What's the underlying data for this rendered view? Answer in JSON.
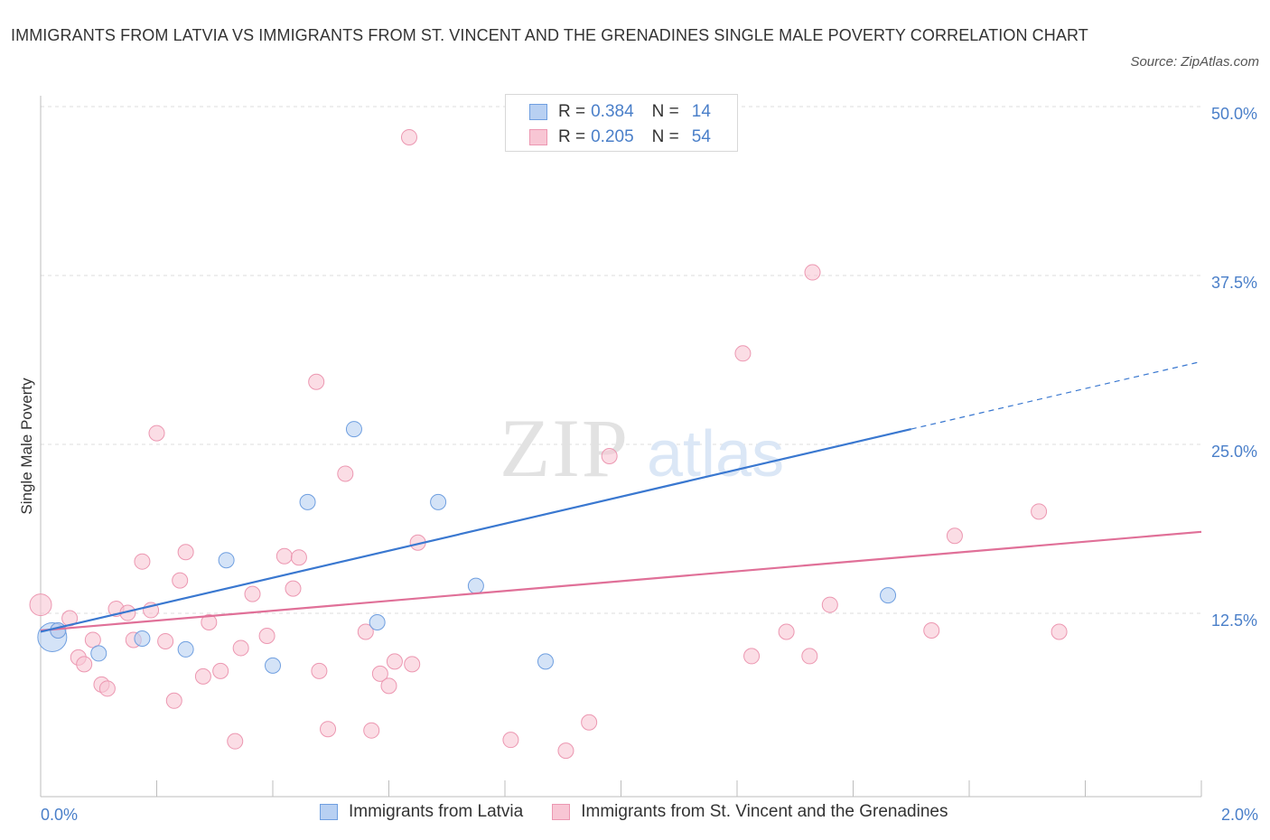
{
  "title": "IMMIGRANTS FROM LATVIA VS IMMIGRANTS FROM ST. VINCENT AND THE GRENADINES SINGLE MALE POVERTY CORRELATION CHART",
  "source": "Source: ZipAtlas.com",
  "watermark": {
    "zip": "ZIP",
    "atlas": "atlas"
  },
  "colors": {
    "latvia_fill": "#b8d0f2",
    "latvia_stroke": "#6f9fe0",
    "latvia_line": "#3a78d0",
    "svg_fill": "#f8c6d4",
    "svg_stroke": "#ec97b1",
    "svg_line": "#e07098",
    "tick_label": "#4a7fc9",
    "grid": "#dcdcdc"
  },
  "legend": {
    "rows": [
      {
        "r_label": "R =",
        "r_value": "0.384",
        "n_label": "N =",
        "n_value": "14"
      },
      {
        "r_label": "R =",
        "r_value": "0.205",
        "n_label": "N =",
        "n_value": "54"
      }
    ]
  },
  "chart_data": {
    "type": "scatter",
    "xlabel": "",
    "ylabel": "Single Male Poverty",
    "xlim": [
      0,
      2.0
    ],
    "ylim": [
      0,
      50
    ],
    "x_tick_labels": [
      "0.0%",
      "2.0%"
    ],
    "y_ticks": [
      12.5,
      25.0,
      37.5,
      50.0
    ],
    "y_tick_labels": [
      "12.5%",
      "25.0%",
      "37.5%",
      "50.0%"
    ],
    "grid": true,
    "legend_position": "bottom",
    "series": [
      {
        "name": "Immigrants from Latvia",
        "points": [
          [
            0.02,
            11.8
          ],
          [
            0.1,
            10.6
          ],
          [
            0.175,
            11.7
          ],
          [
            0.25,
            10.9
          ],
          [
            0.32,
            17.5
          ],
          [
            0.4,
            9.7
          ],
          [
            0.46,
            21.8
          ],
          [
            0.54,
            27.2
          ],
          [
            0.58,
            12.9
          ],
          [
            0.685,
            21.8
          ],
          [
            0.75,
            15.6
          ],
          [
            0.87,
            10.0
          ],
          [
            1.46,
            14.9
          ],
          [
            0.03,
            12.3
          ]
        ],
        "trend": {
          "x0": 0.0,
          "y0": 12.2,
          "x1": 1.5,
          "y1": 27.2,
          "dash_x1": 2.0,
          "dash_y1": 32.2
        }
      },
      {
        "name": "Immigrants from St. Vincent and the Grenadines",
        "points": [
          [
            0.0,
            14.2
          ],
          [
            0.03,
            12.3
          ],
          [
            0.05,
            13.2
          ],
          [
            0.065,
            10.3
          ],
          [
            0.075,
            9.8
          ],
          [
            0.09,
            11.6
          ],
          [
            0.105,
            8.3
          ],
          [
            0.115,
            8.0
          ],
          [
            0.13,
            13.9
          ],
          [
            0.15,
            13.6
          ],
          [
            0.16,
            11.6
          ],
          [
            0.175,
            17.4
          ],
          [
            0.19,
            13.8
          ],
          [
            0.2,
            26.9
          ],
          [
            0.215,
            11.5
          ],
          [
            0.23,
            7.1
          ],
          [
            0.24,
            16.0
          ],
          [
            0.25,
            18.1
          ],
          [
            0.28,
            8.9
          ],
          [
            0.29,
            12.9
          ],
          [
            0.31,
            9.3
          ],
          [
            0.335,
            4.1
          ],
          [
            0.345,
            11.0
          ],
          [
            0.365,
            15.0
          ],
          [
            0.39,
            11.9
          ],
          [
            0.42,
            17.8
          ],
          [
            0.435,
            15.4
          ],
          [
            0.445,
            17.7
          ],
          [
            0.475,
            30.7
          ],
          [
            0.48,
            9.3
          ],
          [
            0.495,
            5.0
          ],
          [
            0.525,
            23.9
          ],
          [
            0.56,
            12.2
          ],
          [
            0.57,
            4.9
          ],
          [
            0.585,
            9.1
          ],
          [
            0.6,
            8.2
          ],
          [
            0.61,
            10.0
          ],
          [
            0.635,
            48.8
          ],
          [
            0.65,
            18.8
          ],
          [
            0.64,
            9.8
          ],
          [
            0.81,
            4.2
          ],
          [
            0.905,
            3.4
          ],
          [
            0.945,
            5.5
          ],
          [
            0.98,
            25.2
          ],
          [
            1.21,
            32.8
          ],
          [
            1.225,
            10.4
          ],
          [
            1.285,
            12.2
          ],
          [
            1.325,
            10.4
          ],
          [
            1.33,
            38.8
          ],
          [
            1.36,
            14.2
          ],
          [
            1.535,
            12.3
          ],
          [
            1.575,
            19.3
          ],
          [
            1.72,
            21.1
          ],
          [
            1.755,
            12.2
          ]
        ],
        "trend": {
          "x0": 0.0,
          "y0": 12.3,
          "x1": 2.0,
          "y1": 19.6
        }
      }
    ]
  }
}
